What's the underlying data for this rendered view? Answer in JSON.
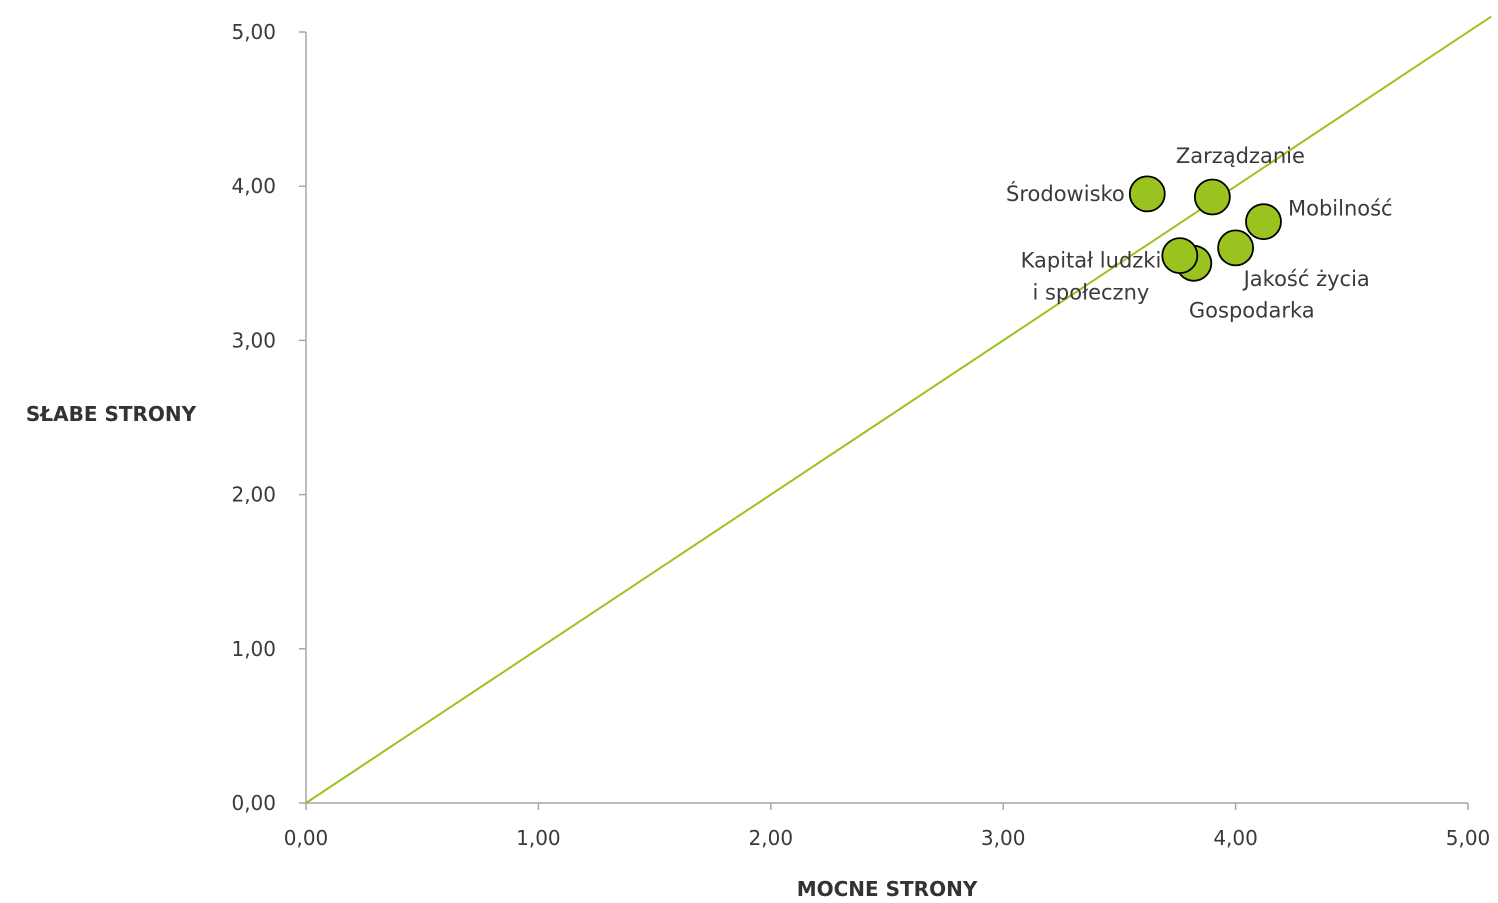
{
  "chart_data": {
    "type": "scatter",
    "xlabel": "MOCNE STRONY",
    "ylabel": "SŁABE STRONY",
    "xlim": [
      0,
      5
    ],
    "ylim": [
      0,
      5
    ],
    "x_ticks": [
      "0,00",
      "1,00",
      "2,00",
      "3,00",
      "4,00",
      "5,00"
    ],
    "y_ticks": [
      "0,00",
      "1,00",
      "2,00",
      "3,00",
      "4,00",
      "5,00"
    ],
    "grid": false,
    "reference_line": {
      "from": [
        0,
        0
      ],
      "to": [
        5.1,
        5.1
      ]
    },
    "points": [
      {
        "label": [
          "Środowisko"
        ],
        "x": 3.62,
        "y": 3.95,
        "label_pos": "left"
      },
      {
        "label": [
          "Zarządzanie"
        ],
        "x": 3.9,
        "y": 3.93,
        "label_pos": "above"
      },
      {
        "label": [
          "Mobilność"
        ],
        "x": 4.12,
        "y": 3.77,
        "label_pos": "right"
      },
      {
        "label": [
          "Jakość życia"
        ],
        "x": 4.0,
        "y": 3.6,
        "label_pos": "below-right"
      },
      {
        "label": [
          "Gospodarka"
        ],
        "x": 3.82,
        "y": 3.5,
        "label_pos": "below"
      },
      {
        "label": [
          "Kapitał ludzki",
          "i społeczny"
        ],
        "x": 3.76,
        "y": 3.55,
        "label_pos": "left"
      }
    ],
    "colors": {
      "marker_fill": "#9ac320",
      "marker_stroke": "#000000",
      "line": "#9ac320",
      "axis": "#a6a6a6"
    }
  }
}
